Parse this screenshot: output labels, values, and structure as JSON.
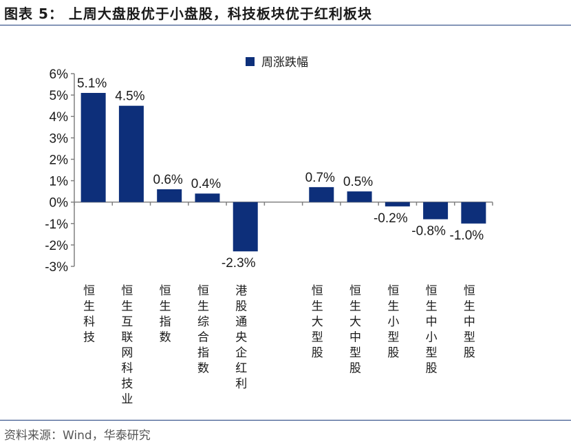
{
  "figure": {
    "title": "图表 5：  上周大盘股优于小盘股，科技板块优于红利板块",
    "source": "资料来源：Wind，华泰研究"
  },
  "chart_data": {
    "type": "bar",
    "title": "上周大盘股优于小盘股，科技板块优于红利板块",
    "legend": [
      "周涨跌幅"
    ],
    "legend_position": "top-right",
    "xlabel": "",
    "ylabel": "",
    "ylim": [
      -3,
      6
    ],
    "yticks": [
      "6%",
      "5%",
      "4%",
      "3%",
      "2%",
      "1%",
      "0%",
      "-1%",
      "-2%",
      "-3%"
    ],
    "ytick_values": [
      6,
      5,
      4,
      3,
      2,
      1,
      0,
      -1,
      -2,
      -3
    ],
    "categories": [
      "恒生科技",
      "恒生互联网科技业",
      "恒生指数",
      "恒生综合指数",
      "港股通央企红利",
      "",
      "恒生大型股",
      "恒生大中型股",
      "恒生小型股",
      "恒生中小型股",
      "恒生中型股"
    ],
    "series": [
      {
        "name": "周涨跌幅",
        "values": [
          5.1,
          4.5,
          0.6,
          0.4,
          -2.3,
          null,
          0.7,
          0.5,
          -0.2,
          -0.8,
          -1.0
        ],
        "labels": [
          "5.1%",
          "4.5%",
          "0.6%",
          "0.4%",
          "-2.3%",
          "",
          "0.7%",
          "0.5%",
          "-0.2%",
          "-0.8%",
          "-1.0%"
        ]
      }
    ],
    "colors": {
      "bar": "#0d2f7a",
      "axis": "#808080",
      "text": "#1a1a1a"
    }
  }
}
